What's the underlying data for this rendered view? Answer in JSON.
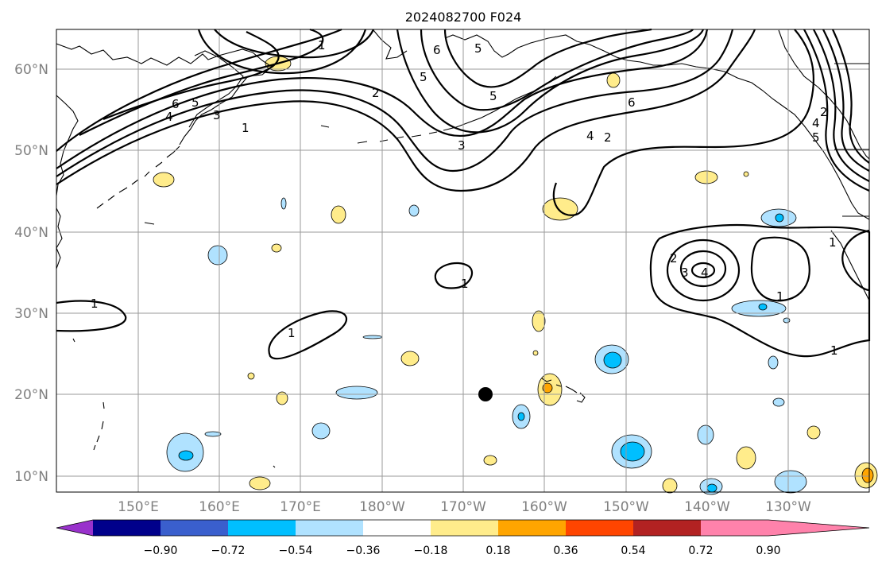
{
  "title": "2024082700 F024",
  "lat_labels": [
    "60°N",
    "50°N",
    "40°N",
    "30°N",
    "20°N",
    "10°N"
  ],
  "lon_labels": [
    "150°E",
    "160°E",
    "170°E",
    "180°W",
    "170°W",
    "160°W",
    "150°W",
    "140°W",
    "130°W"
  ],
  "colorbar": {
    "colors": [
      "#9932cc",
      "#00008b",
      "#3a5fcd",
      "#00bfff",
      "#b0e2ff",
      "#ffffff",
      "#ffec8b",
      "#ffa500",
      "#ff4500",
      "#b22222",
      "#ff82ab"
    ],
    "tick_labels": [
      "−0.90",
      "−0.72",
      "−0.54",
      "−0.36",
      "−0.18",
      "0.18",
      "0.36",
      "0.54",
      "0.72",
      "0.90"
    ]
  },
  "contour_labels": [
    "1",
    "2",
    "3",
    "4",
    "5",
    "6"
  ],
  "marker": "storm-center-dot",
  "colors": {
    "contour": "#000000",
    "grid": "#9a9a9a",
    "positive_light": "#ffec8b",
    "positive_mid": "#ffa500",
    "negative_light": "#b0e2ff",
    "negative_mid": "#00bfff"
  }
}
